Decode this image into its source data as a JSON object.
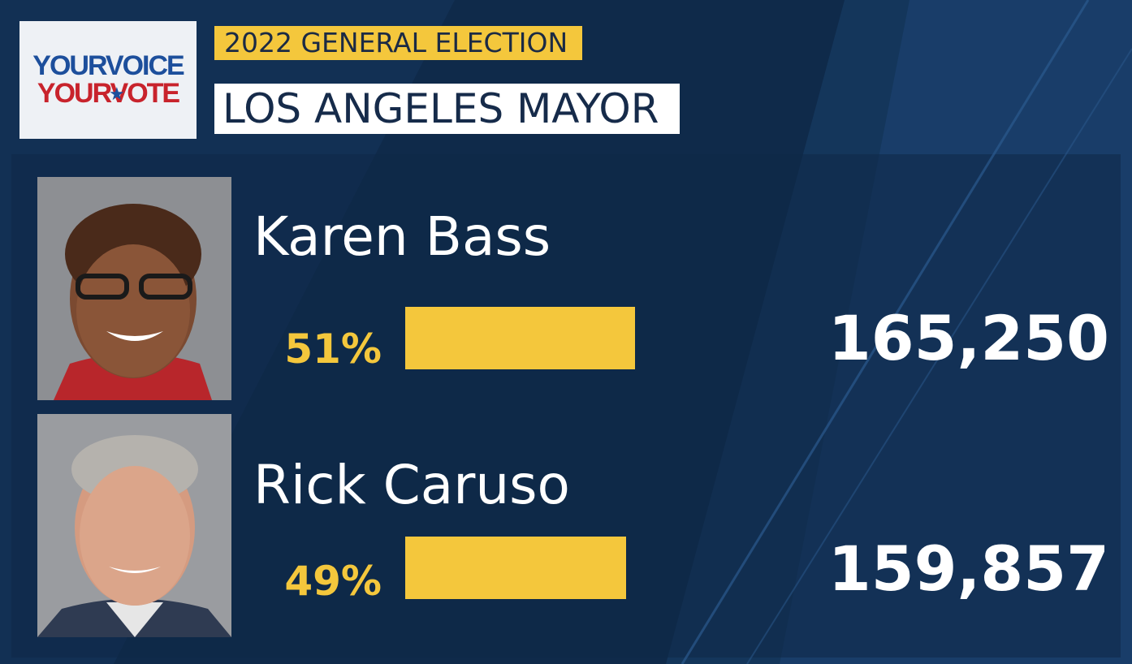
{
  "colors": {
    "background": "#0f2a4a",
    "accent_yellow": "#f4c73c",
    "logo_blue": "#1d4f9c",
    "logo_red": "#c8232c"
  },
  "logo": {
    "line1_a": "YOUR",
    "line1_b": "VOICE",
    "line2_a": "YOUR",
    "line2_b": "VOTE"
  },
  "header": {
    "election_label": "2022 GENERAL ELECTION",
    "race_label": "LOS ANGELES MAYOR"
  },
  "candidates": [
    {
      "name": "Karen Bass",
      "percent_label": "51%",
      "percent": 51,
      "votes": "165,250",
      "photo_icon": "candidate-photo-icon"
    },
    {
      "name": "Rick Caruso",
      "percent_label": "49%",
      "percent": 49,
      "votes": "159,857",
      "photo_icon": "candidate-photo-icon"
    }
  ]
}
